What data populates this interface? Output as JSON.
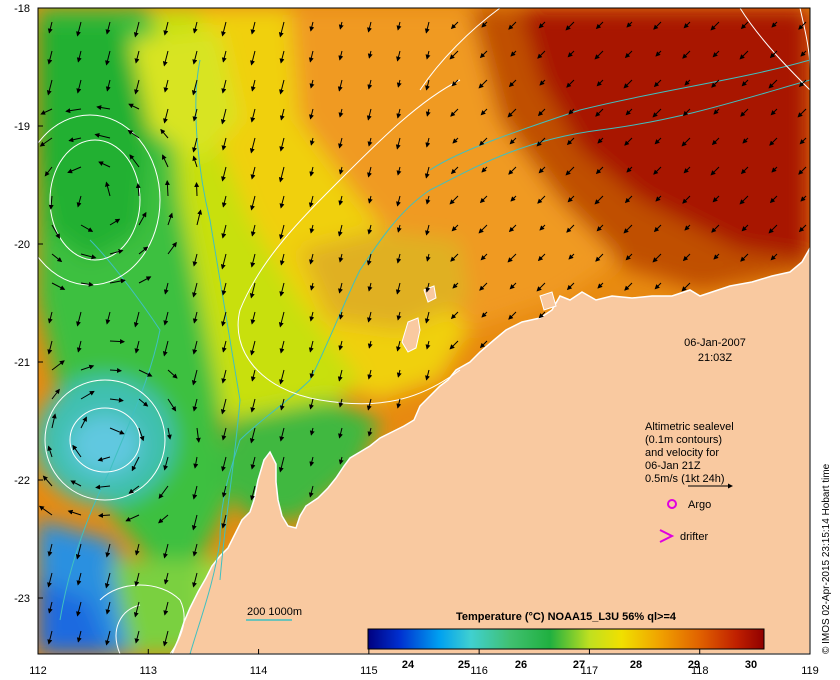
{
  "map": {
    "lon_ticks": [
      "112",
      "113",
      "114",
      "115",
      "116",
      "117",
      "118",
      "119"
    ],
    "lat_ticks": [
      "-18",
      "-19",
      "-20",
      "-21",
      "-22",
      "-23"
    ],
    "datetime": {
      "date": "06-Jan-2007",
      "time": "21:03Z"
    },
    "legend": {
      "lines": [
        "Altimetric sealevel",
        "(0.1m contours)",
        "and velocity for",
        "06-Jan 21Z",
        "0.5m/s (1kt 24h)"
      ],
      "argo_label": "Argo",
      "drifter_label": "drifter"
    },
    "depth_contour_label": "200  1000m",
    "colorbar": {
      "title": "Temperature (°C) NOAA15_L3U 56% ql>=4",
      "ticks": [
        "24",
        "25",
        "26",
        "27",
        "28",
        "29",
        "30"
      ]
    },
    "credit": "© IMOS 02-Apr-2015 23:15:14 Hobart time",
    "colors": {
      "land": "#f9c9a0",
      "sst_hot": "#a31000",
      "sst_warm": "#e07800",
      "sst_mid": "#f5c800",
      "sst_cool": "#b4e000",
      "sst_green": "#40c040",
      "sst_cyan": "#40c0c0",
      "sst_blue": "#2080e0",
      "depth_contour": "#40c0c0",
      "sealevel_contour": "#ffffff",
      "argo_marker": "#e000e0"
    }
  }
}
